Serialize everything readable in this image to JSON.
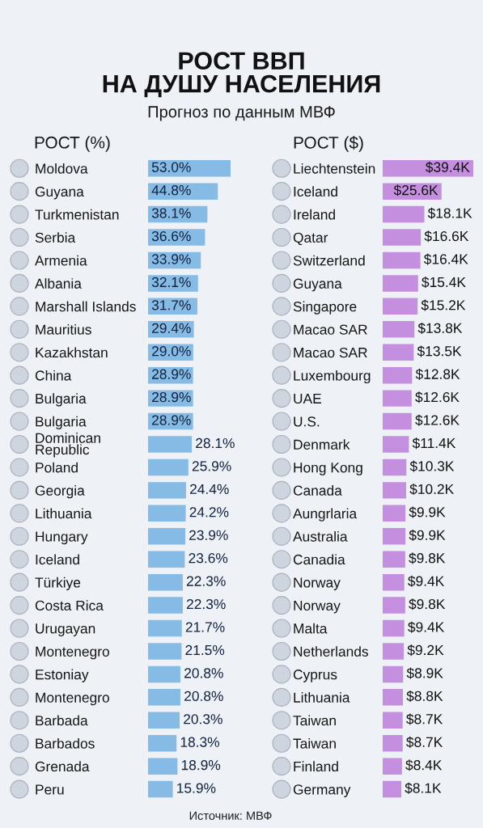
{
  "chart_data": [
    {
      "type": "other",
      "title": "РОСТ ВВП\nНА ДУШУ НАСЕЛЕНИЯ",
      "subtitle": "Прогноз по данным МВФ",
      "annotations": [
        "Источник: МВФ"
      ]
    },
    {
      "type": "bar",
      "orientation": "horizontal",
      "title": "РОСТ (%)",
      "categories": [
        "Moldova",
        "Guyana",
        "Turkmenistan",
        "Serbia",
        "Armenia",
        "Albania",
        "Marshall Islands",
        "Mauritius",
        "Kazakhstan",
        "China",
        "Bulgaria",
        "Bulgaria",
        "Dominican\nRepublic",
        "Poland",
        "Georgia",
        "Lithuania",
        "Hungary",
        "Iceland",
        "Türkiye",
        "Costa Rica",
        "Urugayan",
        "Montenegro",
        "Estoniay",
        "Montenegro",
        "Barbada",
        "Barbados",
        "Grenada",
        "Peru"
      ],
      "values": [
        53.0,
        44.8,
        38.1,
        36.6,
        33.9,
        32.1,
        31.7,
        29.4,
        29.0,
        28.9,
        28.9,
        28.9,
        28.1,
        25.9,
        24.4,
        24.2,
        23.9,
        23.6,
        22.3,
        22.3,
        21.7,
        21.5,
        20.8,
        20.8,
        20.3,
        18.3,
        18.9,
        15.9
      ],
      "value_labels": [
        "53.0%",
        "44.8%",
        "38.1%",
        "36.6%",
        "33.9%",
        "32.1%",
        "31.7%",
        "29.4%",
        "29.0%",
        "28.9%",
        "28.9%",
        "28.9%",
        "28.1%",
        "25.9%",
        "24.4%",
        "24.2%",
        "23.9%",
        "23.6%",
        "22.3%",
        "22.3%",
        "21.7%",
        "21.5%",
        "20.8%",
        "20.8%",
        "20.3%",
        "18.3%",
        "18.9%",
        "15.9%"
      ],
      "color": "#86bbe6",
      "tick_labels": "y"
    },
    {
      "type": "bar",
      "orientation": "horizontal",
      "title": "РОСТ ($)",
      "categories": [
        "Liechtenstein",
        "Iceland",
        "Ireland",
        "Qatar",
        "Switzerland",
        "Guyana",
        "Singapore",
        "Macao SAR",
        "Macao SAR",
        "Luxembourg",
        "UAE",
        "U.S.",
        "Denmark",
        "Hong Kong",
        "Canada",
        "Aungrlaria",
        "Australia",
        "Canadia",
        "Norway",
        "Norway",
        "Malta",
        "Netherlands",
        "Cyprus",
        "Lithuania",
        "Taiwan",
        "Taiwan",
        "Finland",
        "Germany"
      ],
      "values": [
        39.4,
        25.6,
        18.1,
        16.6,
        16.4,
        15.4,
        15.2,
        13.8,
        13.5,
        12.8,
        12.6,
        12.6,
        11.4,
        10.3,
        10.2,
        9.9,
        9.9,
        9.8,
        9.4,
        9.8,
        9.4,
        9.2,
        8.9,
        8.8,
        8.7,
        8.7,
        8.4,
        8.1
      ],
      "value_labels": [
        "$39.4K",
        "$25.6K",
        "$18.1K",
        "$16.6K",
        "$16.4K",
        "$15.4K",
        "$15.2K",
        "$13.8K",
        "$13.5K",
        "$12.8K",
        "$12.6K",
        "$12.6K",
        "$11.4K",
        "$10.3K",
        "$10.2K",
        "$9.9K",
        "$9.9K",
        "$9.8K",
        "$9.4K",
        "$9.8K",
        "$9.4K",
        "$9.2K",
        "$8.9K",
        "$8.8K",
        "$8.7K",
        "$8.7K",
        "$8.4K",
        "$8.1K"
      ],
      "color": "#c58fe0",
      "tick_labels": "y"
    }
  ]
}
